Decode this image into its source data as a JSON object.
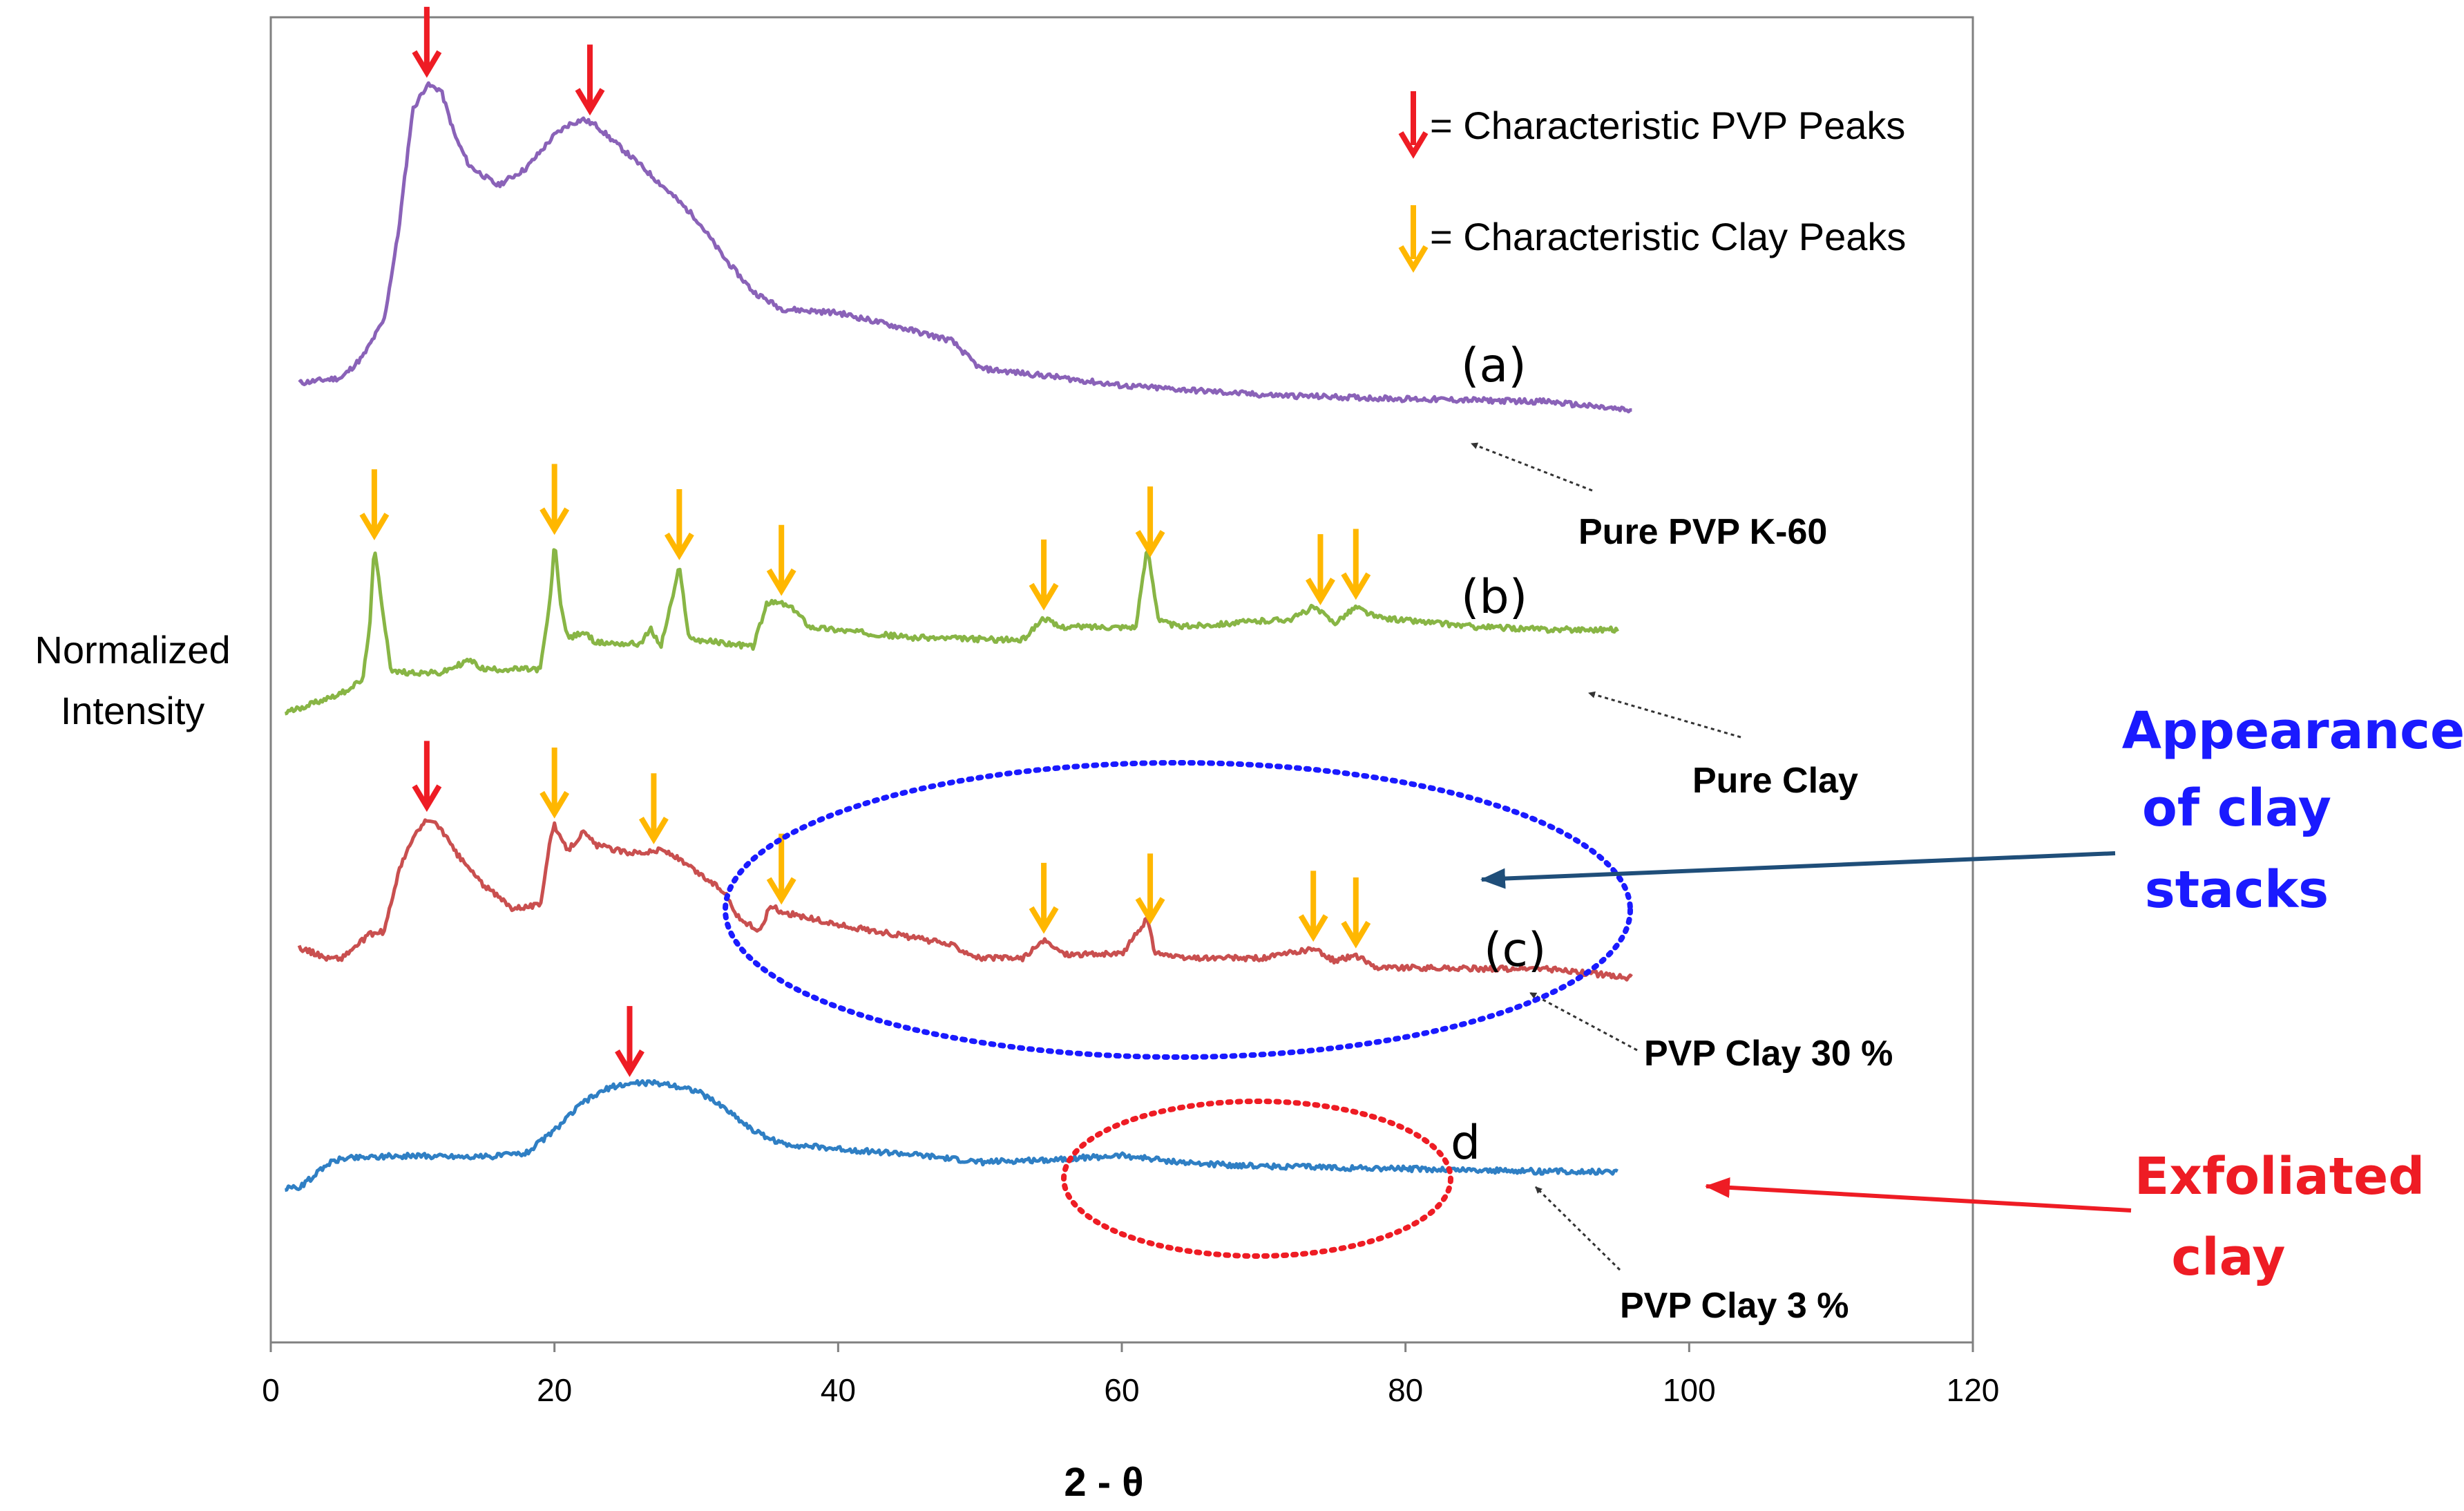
{
  "chart_data": {
    "type": "line",
    "title": "",
    "xlabel": "2 - θ",
    "ylabel_lines": [
      "Normalized",
      "Intensity"
    ],
    "xlim": [
      0,
      120
    ],
    "xticks": [
      0,
      20,
      40,
      60,
      80,
      100,
      120
    ],
    "yticks_shown": false,
    "grid": false,
    "ylim_normalized": [
      0,
      1
    ],
    "series": [
      {
        "id": "a",
        "label": "(a)",
        "name": "Pure PVP K-60",
        "color": "#8a62b8",
        "x": [
          2,
          5,
          6.5,
          8,
          9,
          10,
          11,
          12,
          13,
          14,
          16,
          18,
          20,
          21,
          22,
          23,
          24,
          26,
          28,
          30,
          32,
          34,
          36,
          40,
          44,
          48,
          50,
          55,
          60,
          70,
          80,
          90,
          96
        ],
        "y": [
          0.724,
          0.728,
          0.744,
          0.772,
          0.838,
          0.93,
          0.949,
          0.945,
          0.91,
          0.888,
          0.873,
          0.886,
          0.911,
          0.919,
          0.923,
          0.918,
          0.908,
          0.889,
          0.869,
          0.848,
          0.818,
          0.793,
          0.78,
          0.777,
          0.767,
          0.756,
          0.735,
          0.729,
          0.722,
          0.715,
          0.712,
          0.71,
          0.703
        ]
      },
      {
        "id": "b",
        "label": "(b)",
        "name": "Pure Clay",
        "color": "#88b545",
        "x": [
          1,
          5,
          6.5,
          7,
          7.3,
          7.8,
          8.5,
          12,
          14,
          15,
          19,
          19.7,
          20,
          20.5,
          21,
          22,
          23,
          26,
          26.8,
          27.5,
          28.3,
          28.8,
          29.5,
          34,
          35,
          36,
          37,
          38,
          45,
          53,
          54.5,
          55.5,
          61,
          61.8,
          62.6,
          64,
          72,
          73.5,
          75,
          76.5,
          78,
          85,
          90,
          95
        ],
        "y": [
          0.475,
          0.49,
          0.5,
          0.545,
          0.6,
          0.56,
          0.506,
          0.505,
          0.515,
          0.508,
          0.508,
          0.56,
          0.604,
          0.552,
          0.531,
          0.536,
          0.528,
          0.527,
          0.538,
          0.525,
          0.561,
          0.585,
          0.531,
          0.525,
          0.558,
          0.558,
          0.552,
          0.54,
          0.532,
          0.53,
          0.547,
          0.54,
          0.54,
          0.601,
          0.545,
          0.54,
          0.546,
          0.555,
          0.543,
          0.555,
          0.547,
          0.54,
          0.538,
          0.538
        ]
      },
      {
        "id": "c",
        "label": "(c)",
        "name": "PVP Clay 30 %",
        "color": "#c94f4f",
        "x": [
          2,
          4,
          5,
          7,
          8,
          9,
          10,
          11,
          12,
          13,
          15,
          17,
          19,
          19.7,
          20,
          20.5,
          21,
          22,
          23,
          25,
          26.8,
          27.5,
          28.3,
          30,
          32,
          33,
          34.5,
          35.2,
          36,
          38,
          40,
          44,
          48,
          50,
          53,
          54.5,
          56,
          60,
          61.8,
          62.3,
          64,
          70,
          73.5,
          75,
          76.5,
          78,
          85,
          90,
          96
        ],
        "y": [
          0.298,
          0.29,
          0.29,
          0.308,
          0.31,
          0.355,
          0.38,
          0.395,
          0.388,
          0.37,
          0.345,
          0.328,
          0.33,
          0.38,
          0.39,
          0.378,
          0.372,
          0.385,
          0.375,
          0.37,
          0.37,
          0.372,
          0.368,
          0.355,
          0.34,
          0.32,
          0.31,
          0.33,
          0.325,
          0.32,
          0.315,
          0.308,
          0.3,
          0.29,
          0.29,
          0.303,
          0.293,
          0.293,
          0.32,
          0.295,
          0.29,
          0.29,
          0.297,
          0.288,
          0.292,
          0.283,
          0.282,
          0.282,
          0.275
        ]
      },
      {
        "id": "d",
        "label": "d",
        "name": "PVP Clay 3 %",
        "color": "#2f7fc4",
        "x": [
          1,
          2,
          3,
          4,
          5,
          7,
          10,
          15,
          18,
          20,
          22,
          24,
          26,
          28,
          30,
          32,
          34,
          36,
          40,
          45,
          50,
          55,
          60,
          65,
          70,
          80,
          90,
          95
        ],
        "y": [
          0.116,
          0.117,
          0.125,
          0.135,
          0.139,
          0.14,
          0.141,
          0.14,
          0.143,
          0.16,
          0.181,
          0.193,
          0.196,
          0.195,
          0.19,
          0.177,
          0.16,
          0.15,
          0.146,
          0.142,
          0.136,
          0.138,
          0.141,
          0.135,
          0.133,
          0.131,
          0.129,
          0.129
        ]
      }
    ],
    "peak_markers": [
      {
        "series": "a",
        "type": "pvp",
        "x": [
          11,
          22.5
        ]
      },
      {
        "series": "b",
        "type": "clay",
        "x": [
          7.3,
          20,
          28.8,
          36,
          54.5,
          62,
          74,
          76.5
        ]
      },
      {
        "series": "c",
        "type": "pvp",
        "x": [
          11
        ]
      },
      {
        "series": "c",
        "type": "clay",
        "x": [
          20,
          27,
          36,
          54.5,
          62,
          73.5,
          76.5
        ]
      },
      {
        "series": "d",
        "type": "pvp",
        "x": [
          25.3
        ]
      }
    ],
    "legend": {
      "position": "top-right",
      "entries": [
        {
          "label": "= Characteristic PVP Peaks",
          "arrow_color": "#ee1c24"
        },
        {
          "label": "= Characteristic Clay Peaks",
          "arrow_color": "#ffb700"
        }
      ]
    },
    "annotations": [
      {
        "id": "stacks",
        "lines": [
          "Appearance",
          "of clay",
          "stacks"
        ],
        "color": "#1a1aff",
        "ellipse_color": "#1a1aff",
        "arrow_color": "#1f4e79"
      },
      {
        "id": "exfoliated",
        "lines": [
          "Exfoliated",
          "clay"
        ],
        "color": "#ee1c24",
        "ellipse_color": "#ee1c24",
        "arrow_color": "#ee1c24"
      }
    ]
  }
}
